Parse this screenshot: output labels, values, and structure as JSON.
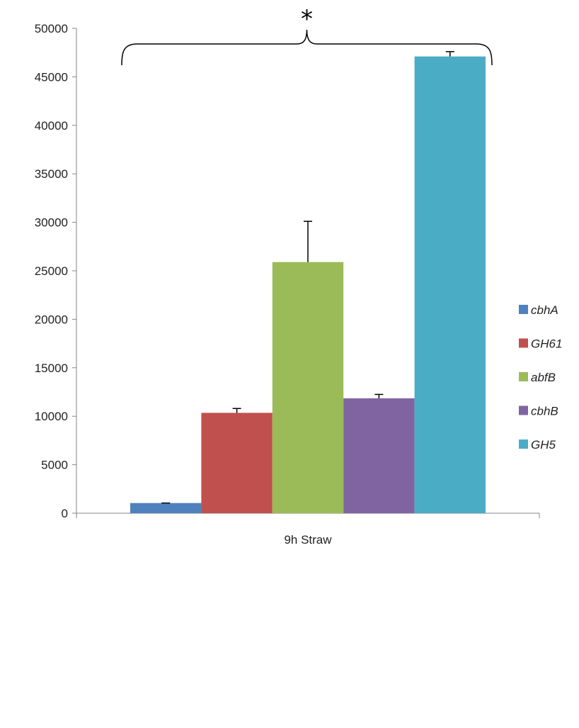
{
  "chart_data": {
    "type": "bar",
    "categories": [
      "9h Straw"
    ],
    "series": [
      {
        "name": "cbhA",
        "values": [
          1050
        ],
        "error": [
          0
        ],
        "color": "#4f81bd"
      },
      {
        "name": "GH61",
        "values": [
          10350
        ],
        "error": [
          450
        ],
        "color": "#c0504d"
      },
      {
        "name": "abfB",
        "values": [
          25900
        ],
        "error": [
          4200
        ],
        "color": "#9bbb59"
      },
      {
        "name": "cbhB",
        "values": [
          11850
        ],
        "error": [
          400
        ],
        "color": "#8064a2"
      },
      {
        "name": "GH5",
        "values": [
          47100
        ],
        "error": [
          500
        ],
        "color": "#4bacc6"
      }
    ],
    "ylim": [
      0,
      50000
    ],
    "yticks": [
      0,
      5000,
      10000,
      15000,
      20000,
      25000,
      30000,
      35000,
      40000,
      45000,
      50000
    ],
    "ytick_labels": [
      "0",
      "5000",
      "10000",
      "15000",
      "20000",
      "25000",
      "30000",
      "35000",
      "40000",
      "45000",
      "50000"
    ],
    "title": "",
    "xlabel": "",
    "ylabel": "",
    "grid": false,
    "legend_position": "right",
    "annotation": "*"
  }
}
